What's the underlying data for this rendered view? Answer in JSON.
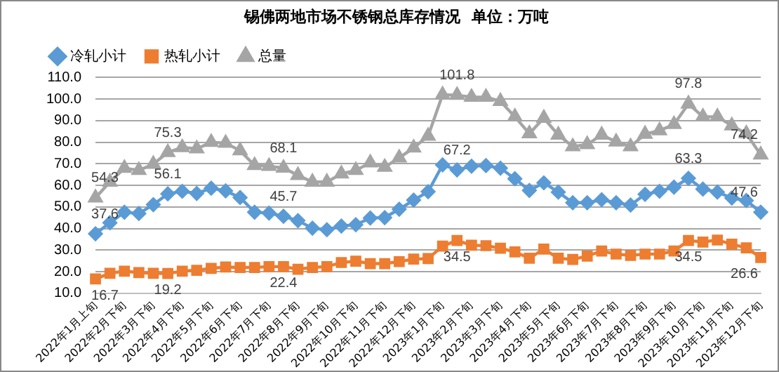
{
  "chart_data": {
    "type": "line",
    "title": "锡佛两地市场不锈钢总库存情况  单位：万吨",
    "categories": [
      "2022年1月上旬",
      null,
      "2022年2月下旬",
      null,
      "2022年3月下旬",
      null,
      "2022年4月下旬",
      null,
      "2022年5月下旬",
      null,
      "2022年6月下旬",
      null,
      "2022年7月下旬",
      null,
      "2022年8月下旬",
      null,
      "2022年9月下旬",
      null,
      "2022年10月下旬",
      null,
      "2022年11月下旬",
      null,
      "2022年12月下旬",
      null,
      "2023年1月下旬",
      null,
      "2023年2月下旬",
      null,
      "2023年3月下旬",
      null,
      "2023年4月下旬",
      null,
      "2023年5月下旬",
      null,
      "2023年6月下旬",
      null,
      "2023年7月下旬",
      null,
      "2023年8月下旬",
      null,
      "2023年9月下旬",
      null,
      "2023年10月下旬",
      null,
      "2023年11月下旬",
      null,
      "2023年12月下旬"
    ],
    "series": [
      {
        "name": "冷轧小计",
        "color": "#5b9bd5",
        "marker": "diamond",
        "values": [
          37.6,
          42.7,
          47.6,
          47.0,
          51.1,
          56.1,
          57.3,
          56.3,
          58.7,
          57.5,
          54.4,
          47.6,
          47.2,
          45.7,
          43.7,
          40.2,
          39.5,
          41.2,
          41.8,
          44.9,
          45.1,
          49.0,
          53.2,
          57.1,
          69.5,
          67.2,
          68.9,
          69.2,
          68.0,
          63.1,
          57.7,
          61.2,
          56.9,
          52.0,
          52.0,
          53.4,
          52.0,
          50.9,
          55.9,
          57.3,
          59.2,
          63.3,
          58.3,
          56.9,
          54.2,
          53.0,
          47.6
        ],
        "value_labels": [
          "37.6",
          null,
          null,
          null,
          null,
          "56.1",
          null,
          null,
          null,
          null,
          null,
          null,
          null,
          "45.7",
          null,
          null,
          null,
          null,
          null,
          null,
          null,
          null,
          null,
          null,
          null,
          "67.2",
          null,
          null,
          null,
          null,
          null,
          null,
          null,
          null,
          null,
          null,
          null,
          null,
          null,
          null,
          null,
          "63.3",
          null,
          null,
          null,
          null,
          "47.6"
        ]
      },
      {
        "name": "热轧小计",
        "color": "#ed7d31",
        "marker": "square",
        "values": [
          16.7,
          19.3,
          20.3,
          19.6,
          19.3,
          19.2,
          20.3,
          20.7,
          21.6,
          22.2,
          22.0,
          22.0,
          22.4,
          22.4,
          21.2,
          22.0,
          22.4,
          24.3,
          24.9,
          23.8,
          23.8,
          24.7,
          25.9,
          26.1,
          31.9,
          34.5,
          32.3,
          32.1,
          30.9,
          29.2,
          26.3,
          30.5,
          26.3,
          25.7,
          27.3,
          29.6,
          28.2,
          27.6,
          28.2,
          28.2,
          29.6,
          34.5,
          33.8,
          34.7,
          32.8,
          31.1,
          26.6
        ],
        "value_labels": [
          "16.7",
          null,
          null,
          null,
          null,
          "19.2",
          null,
          null,
          null,
          null,
          null,
          null,
          null,
          "22.4",
          null,
          null,
          null,
          null,
          null,
          null,
          null,
          null,
          null,
          null,
          null,
          "34.5",
          null,
          null,
          null,
          null,
          null,
          null,
          null,
          null,
          null,
          null,
          null,
          null,
          null,
          null,
          null,
          "34.5",
          null,
          null,
          null,
          null,
          "26.6"
        ]
      },
      {
        "name": "总量",
        "color": "#a5a5a5",
        "marker": "triangle",
        "values": [
          54.3,
          61.6,
          68.0,
          67.0,
          69.9,
          75.3,
          77.6,
          77.0,
          80.0,
          79.6,
          76.1,
          69.3,
          68.9,
          68.1,
          64.7,
          61.6,
          61.6,
          65.4,
          67.0,
          70.5,
          68.5,
          72.8,
          77.4,
          82.9,
          102.0,
          101.8,
          100.9,
          100.9,
          99.0,
          91.8,
          84.0,
          91.2,
          83.4,
          78.0,
          79.0,
          83.4,
          80.2,
          78.0,
          83.8,
          85.4,
          88.3,
          97.8,
          91.8,
          91.8,
          87.7,
          84.0,
          74.2
        ],
        "value_labels": [
          "54.3",
          null,
          null,
          null,
          null,
          "75.3",
          null,
          null,
          null,
          null,
          null,
          null,
          null,
          "68.1",
          null,
          null,
          null,
          null,
          null,
          null,
          null,
          null,
          null,
          null,
          null,
          "101.8",
          null,
          null,
          null,
          null,
          null,
          null,
          null,
          null,
          null,
          null,
          null,
          null,
          null,
          null,
          null,
          "97.8",
          null,
          null,
          null,
          null,
          "74.2"
        ]
      }
    ],
    "ylim": [
      10,
      110
    ],
    "yticks": [
      {
        "value": 10,
        "label": "10.0"
      },
      {
        "value": 20,
        "label": "20.0"
      },
      {
        "value": 30,
        "label": "30.0"
      },
      {
        "value": 40,
        "label": "40.0"
      },
      {
        "value": 50,
        "label": "50.0"
      },
      {
        "value": 60,
        "label": "60.0"
      },
      {
        "value": 70,
        "label": "70.0"
      },
      {
        "value": 80,
        "label": "80.0"
      },
      {
        "value": 90,
        "label": "90.0"
      },
      {
        "value": 100,
        "label": "100.0"
      },
      {
        "value": 110,
        "label": "110.0"
      }
    ],
    "grid": "y",
    "legend": "top left",
    "line_style": "solid"
  }
}
